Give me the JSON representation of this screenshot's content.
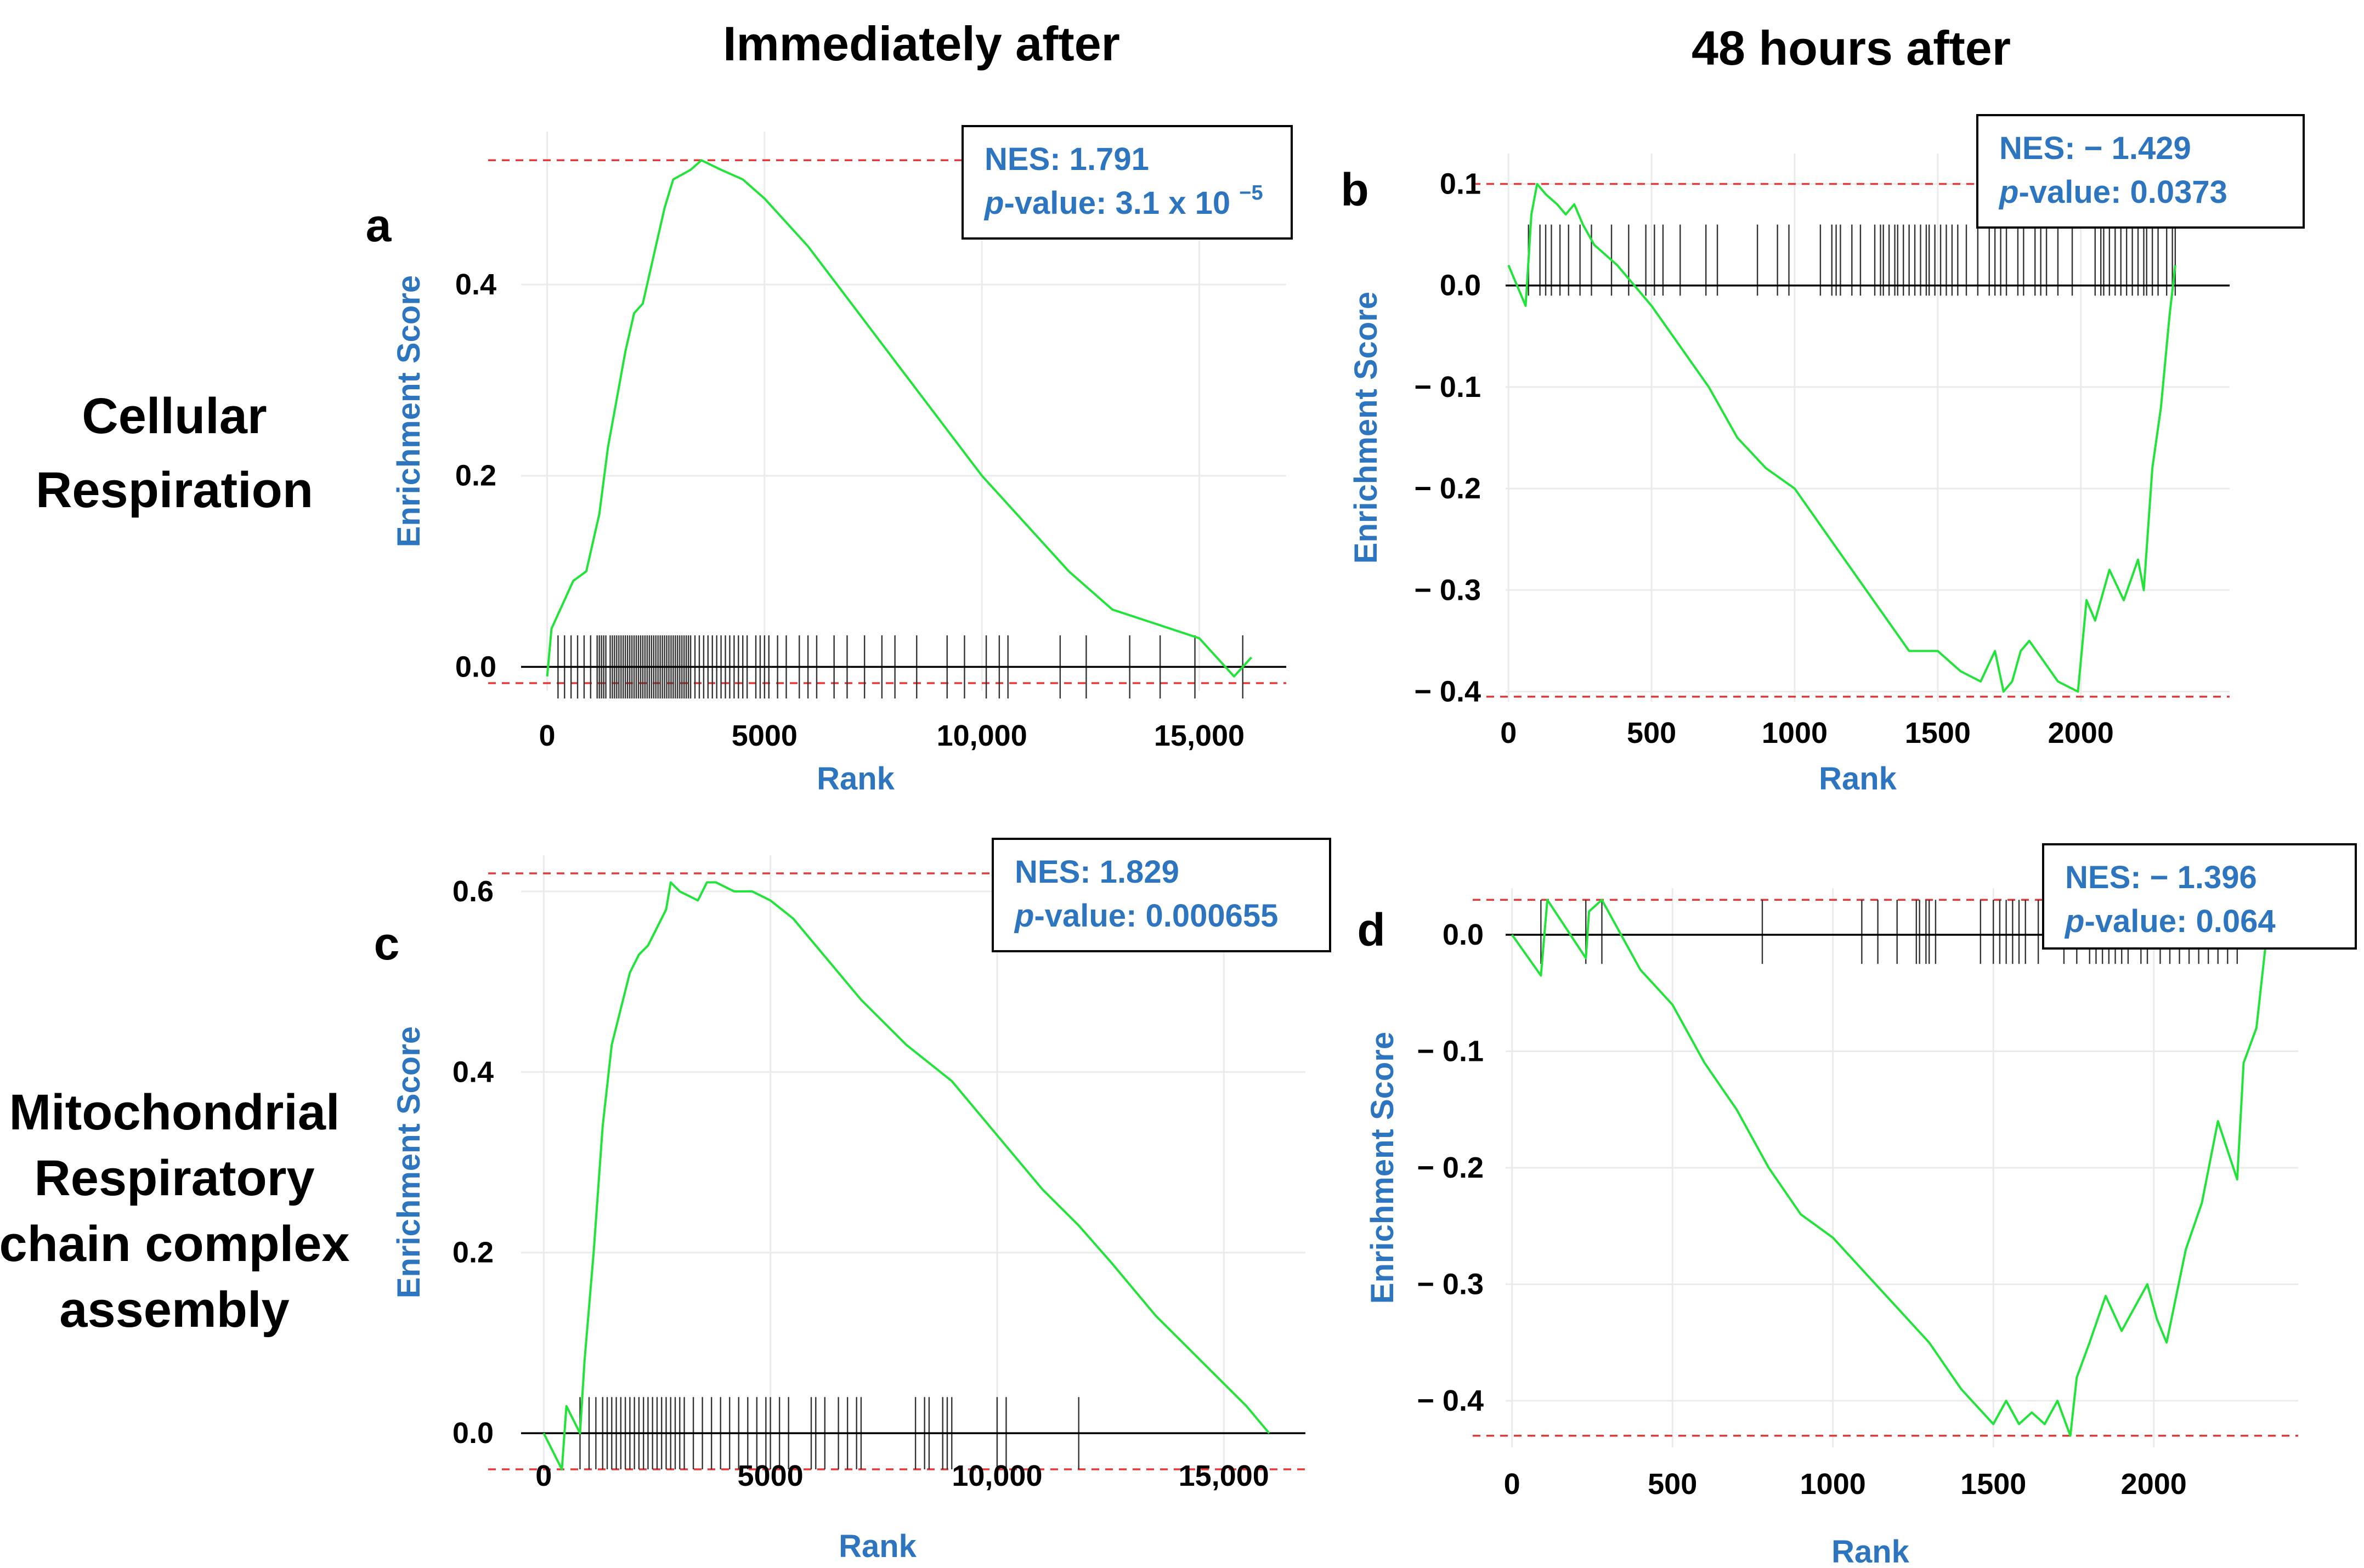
{
  "headers": {
    "col1": "Immediately after",
    "col2": "48 hours after"
  },
  "row_labels": {
    "row1": [
      "Cellular",
      "Respiration"
    ],
    "row2": [
      "Mitochondrial",
      "Respiratory",
      "chain complex",
      "assembly"
    ]
  },
  "colors": {
    "es_line": "#22e33a",
    "ref_line": "#e33b3b",
    "axis_label": "#2e75c0",
    "stat_text": "#2e75c0"
  },
  "chart_data": [
    {
      "panel": "a",
      "type": "line",
      "xlabel": "Rank",
      "ylabel": "Enrichment Score",
      "xlim": [
        -600,
        17000
      ],
      "ylim": [
        -0.025,
        0.56
      ],
      "xticks": [
        0,
        5000,
        10000,
        15000
      ],
      "xtick_labels": [
        "0",
        "5000",
        "10,000",
        "15,000"
      ],
      "yticks": [
        0.0,
        0.2,
        0.4
      ],
      "ytick_labels": [
        "0.0",
        "0.2",
        "0.4"
      ],
      "reference_lines": [
        0.53,
        -0.017
      ],
      "rug": {
        "y_top": 0.033,
        "y_bottom": -0.033
      },
      "stats": {
        "nes_label": "NES: 1.791",
        "p_label": "p",
        "p_value": "-value: 3.1 x 10 ",
        "p_exponent": "−5"
      },
      "x": [
        0,
        100,
        400,
        600,
        900,
        1200,
        1400,
        1600,
        1800,
        2000,
        2200,
        2500,
        2700,
        2900,
        3100,
        3300,
        3550,
        4000,
        4500,
        5000,
        6000,
        7000,
        8000,
        9000,
        10000,
        11000,
        12000,
        13000,
        14000,
        15000,
        15800,
        16200
      ],
      "y": [
        -0.01,
        0.04,
        0.07,
        0.09,
        0.1,
        0.16,
        0.23,
        0.28,
        0.33,
        0.37,
        0.38,
        0.44,
        0.48,
        0.51,
        0.515,
        0.52,
        0.53,
        0.52,
        0.51,
        0.49,
        0.44,
        0.38,
        0.32,
        0.26,
        0.2,
        0.15,
        0.1,
        0.06,
        0.045,
        0.03,
        -0.01,
        0.01
      ],
      "rug_positions": [
        250,
        400,
        550,
        700,
        850,
        1000,
        1150,
        1200,
        1250,
        1300,
        1350,
        1450,
        1500,
        1550,
        1600,
        1650,
        1700,
        1750,
        1800,
        1850,
        1900,
        1950,
        2000,
        2050,
        2100,
        2150,
        2200,
        2250,
        2300,
        2350,
        2400,
        2450,
        2500,
        2550,
        2600,
        2650,
        2700,
        2750,
        2800,
        2850,
        2900,
        2950,
        3000,
        3050,
        3100,
        3150,
        3200,
        3250,
        3300,
        3400,
        3500,
        3600,
        3700,
        3800,
        3900,
        4000,
        4100,
        4200,
        4300,
        4400,
        4500,
        4600,
        4800,
        4900,
        5000,
        5100,
        5300,
        5500,
        5800,
        6000,
        6200,
        6600,
        6900,
        7300,
        7700,
        8000,
        8500,
        9200,
        9600,
        10100,
        10400,
        10600,
        11800,
        12400,
        13400,
        14100,
        14900,
        16000
      ]
    },
    {
      "panel": "b",
      "type": "line",
      "xlabel": "Rank",
      "ylabel": "Enrichment Score",
      "xlim": [
        -10,
        2520
      ],
      "ylim": [
        -0.41,
        0.13
      ],
      "xticks": [
        0,
        500,
        1000,
        1500,
        2000
      ],
      "xtick_labels": [
        "0",
        "500",
        "1000",
        "1500",
        "2000"
      ],
      "yticks": [
        0.1,
        0.0,
        -0.1,
        -0.2,
        -0.3,
        -0.4
      ],
      "ytick_labels": [
        "0.1",
        "0.0",
        "− 0.1",
        "− 0.2",
        "− 0.3",
        "− 0.4"
      ],
      "reference_lines": [
        0.1,
        -0.405
      ],
      "rug": {
        "y_top": 0.06,
        "y_bottom": -0.01
      },
      "stats": {
        "nes_label": "NES: − 1.429",
        "p_label": "p",
        "p_value": "-value: 0.0373",
        "p_exponent": ""
      },
      "x": [
        0,
        60,
        80,
        100,
        130,
        170,
        200,
        230,
        260,
        300,
        380,
        500,
        600,
        700,
        800,
        900,
        1000,
        1100,
        1200,
        1300,
        1400,
        1500,
        1580,
        1650,
        1700,
        1730,
        1760,
        1790,
        1820,
        1870,
        1920,
        1990,
        2020,
        2050,
        2100,
        2150,
        2200,
        2220,
        2250,
        2280,
        2310,
        2330
      ],
      "y": [
        0.02,
        -0.02,
        0.07,
        0.1,
        0.09,
        0.08,
        0.07,
        0.08,
        0.06,
        0.04,
        0.02,
        -0.02,
        -0.06,
        -0.1,
        -0.15,
        -0.18,
        -0.2,
        -0.24,
        -0.28,
        -0.32,
        -0.36,
        -0.36,
        -0.38,
        -0.39,
        -0.36,
        -0.4,
        -0.39,
        -0.36,
        -0.35,
        -0.37,
        -0.39,
        -0.4,
        -0.31,
        -0.33,
        -0.28,
        -0.31,
        -0.27,
        -0.3,
        -0.18,
        -0.12,
        -0.03,
        0.02
      ],
      "rug_positions": [
        70,
        110,
        130,
        150,
        180,
        210,
        250,
        290,
        360,
        420,
        480,
        510,
        540,
        600,
        690,
        730,
        870,
        940,
        980,
        1090,
        1130,
        1145,
        1160,
        1200,
        1230,
        1280,
        1300,
        1310,
        1330,
        1350,
        1360,
        1380,
        1400,
        1420,
        1440,
        1460,
        1470,
        1490,
        1510,
        1530,
        1550,
        1570,
        1600,
        1640,
        1680,
        1700,
        1720,
        1740,
        1780,
        1800,
        1840,
        1860,
        1880,
        1920,
        1970,
        2050,
        2070,
        2080,
        2100,
        2120,
        2140,
        2160,
        2180,
        2200,
        2220,
        2230,
        2250,
        2270,
        2300,
        2320,
        2330
      ]
    },
    {
      "panel": "c",
      "type": "line",
      "xlabel": "Rank",
      "ylabel": "Enrichment Score",
      "xlim": [
        -500,
        16800
      ],
      "ylim": [
        -0.04,
        0.64
      ],
      "xticks": [
        0,
        5000,
        10000,
        15000
      ],
      "xtick_labels": [
        "0",
        "5000",
        "10,000",
        "15,000"
      ],
      "yticks": [
        0.0,
        0.2,
        0.4,
        0.6
      ],
      "ytick_labels": [
        "0.0",
        "0.2",
        "0.4",
        "0.6"
      ],
      "reference_lines": [
        0.62,
        -0.04
      ],
      "rug": {
        "y_top": 0.04,
        "y_bottom": -0.04
      },
      "stats": {
        "nes_label": "NES: 1.829",
        "p_label": "p",
        "p_value": "-value: 0.000655",
        "p_exponent": ""
      },
      "x": [
        0,
        400,
        500,
        800,
        900,
        1100,
        1300,
        1500,
        1700,
        1900,
        2100,
        2300,
        2500,
        2700,
        2800,
        3000,
        3400,
        3600,
        3800,
        4200,
        4600,
        5000,
        5500,
        6000,
        7000,
        8000,
        9000,
        10000,
        11000,
        11800,
        12500,
        13500,
        14500,
        15500,
        16000
      ],
      "y": [
        0.0,
        -0.04,
        0.03,
        0.0,
        0.08,
        0.2,
        0.34,
        0.43,
        0.47,
        0.51,
        0.53,
        0.54,
        0.56,
        0.58,
        0.61,
        0.6,
        0.59,
        0.61,
        0.61,
        0.6,
        0.6,
        0.59,
        0.57,
        0.54,
        0.48,
        0.43,
        0.39,
        0.33,
        0.27,
        0.23,
        0.19,
        0.13,
        0.08,
        0.03,
        0.0
      ],
      "rug_positions": [
        800,
        1000,
        1150,
        1300,
        1400,
        1500,
        1600,
        1700,
        1800,
        1900,
        2000,
        2100,
        2200,
        2300,
        2400,
        2500,
        2600,
        2700,
        2800,
        2900,
        3000,
        3100,
        3300,
        3500,
        3700,
        3900,
        4100,
        4300,
        4500,
        4700,
        4900,
        5000,
        5200,
        5400,
        5900,
        6000,
        6200,
        6500,
        6700,
        6900,
        7000,
        8200,
        8400,
        8500,
        8800,
        8900,
        9000,
        10000,
        10200,
        11800
      ]
    },
    {
      "panel": "d",
      "type": "line",
      "xlabel": "Rank",
      "ylabel": "Enrichment Score",
      "xlim": [
        -20,
        2450
      ],
      "ylim": [
        -0.44,
        0.04
      ],
      "xticks": [
        0,
        500,
        1000,
        1500,
        2000
      ],
      "xtick_labels": [
        "0",
        "500",
        "1000",
        "1500",
        "2000"
      ],
      "yticks": [
        0.0,
        -0.1,
        -0.2,
        -0.3,
        -0.4
      ],
      "ytick_labels": [
        "0.0",
        "− 0.1",
        "− 0.2",
        "− 0.3",
        "− 0.4"
      ],
      "reference_lines": [
        0.03,
        -0.43
      ],
      "rug": {
        "y_top": 0.03,
        "y_bottom": -0.025
      },
      "stats": {
        "nes_label": "NES: − 1.396",
        "p_label": "p",
        "p_value": "-value: 0.064",
        "p_exponent": ""
      },
      "x": [
        0,
        90,
        110,
        230,
        240,
        280,
        400,
        500,
        600,
        700,
        800,
        900,
        1000,
        1100,
        1200,
        1300,
        1400,
        1500,
        1540,
        1580,
        1620,
        1660,
        1700,
        1740,
        1760,
        1800,
        1850,
        1900,
        1980,
        2010,
        2040,
        2100,
        2150,
        2200,
        2260,
        2280,
        2320,
        2350
      ],
      "y": [
        0.0,
        -0.035,
        0.03,
        -0.02,
        0.02,
        0.03,
        -0.03,
        -0.06,
        -0.11,
        -0.15,
        -0.2,
        -0.24,
        -0.26,
        -0.29,
        -0.32,
        -0.35,
        -0.39,
        -0.42,
        -0.4,
        -0.42,
        -0.41,
        -0.42,
        -0.4,
        -0.43,
        -0.38,
        -0.35,
        -0.31,
        -0.34,
        -0.3,
        -0.33,
        -0.35,
        -0.27,
        -0.23,
        -0.16,
        -0.21,
        -0.11,
        -0.08,
        -0.005
      ],
      "rug_positions": [
        90,
        230,
        280,
        780,
        1090,
        1140,
        1200,
        1260,
        1270,
        1290,
        1300,
        1320,
        1460,
        1500,
        1520,
        1540,
        1560,
        1580,
        1600,
        1640,
        1720,
        1760,
        1800,
        1820,
        1840,
        1860,
        1880,
        1900,
        1920,
        1960,
        1980,
        2020,
        2050,
        2080,
        2110,
        2140,
        2170,
        2200,
        2230,
        2260
      ]
    }
  ]
}
